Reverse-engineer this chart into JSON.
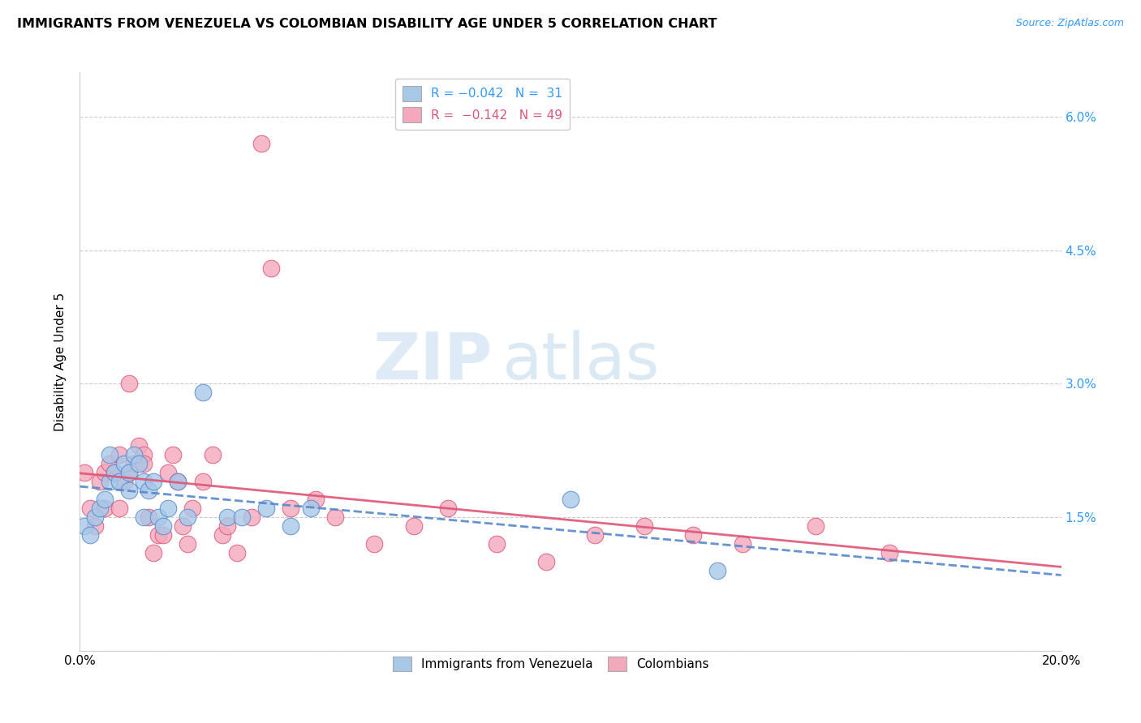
{
  "title": "IMMIGRANTS FROM VENEZUELA VS COLOMBIAN DISABILITY AGE UNDER 5 CORRELATION CHART",
  "source": "Source: ZipAtlas.com",
  "ylabel": "Disability Age Under 5",
  "xlim": [
    0.0,
    0.2
  ],
  "ylim": [
    0.0,
    0.065
  ],
  "yticks": [
    0.0,
    0.015,
    0.03,
    0.045,
    0.06
  ],
  "ytick_labels": [
    "",
    "1.5%",
    "3.0%",
    "4.5%",
    "6.0%"
  ],
  "xticks": [
    0.0,
    0.05,
    0.1,
    0.15,
    0.2
  ],
  "xtick_labels": [
    "0.0%",
    "",
    "",
    "",
    "20.0%"
  ],
  "legend_r1": "R = −0.042   N =  31",
  "legend_r2": "R =  −0.142   N = 49",
  "color_venezuela": "#a8c8e8",
  "color_colombia": "#f4a8bc",
  "line_color_venezuela": "#5588cc",
  "line_color_colombia": "#dd5577",
  "watermark_zip": "ZIP",
  "watermark_atlas": "atlas",
  "venezuela_x": [
    0.001,
    0.002,
    0.003,
    0.004,
    0.005,
    0.006,
    0.006,
    0.007,
    0.008,
    0.009,
    0.01,
    0.01,
    0.011,
    0.012,
    0.013,
    0.013,
    0.014,
    0.015,
    0.016,
    0.017,
    0.018,
    0.02,
    0.022,
    0.025,
    0.03,
    0.033,
    0.038,
    0.043,
    0.047,
    0.1,
    0.13
  ],
  "venezuela_y": [
    0.014,
    0.013,
    0.015,
    0.016,
    0.017,
    0.019,
    0.022,
    0.02,
    0.019,
    0.021,
    0.02,
    0.018,
    0.022,
    0.021,
    0.019,
    0.015,
    0.018,
    0.019,
    0.015,
    0.014,
    0.016,
    0.019,
    0.015,
    0.029,
    0.015,
    0.015,
    0.016,
    0.014,
    0.016,
    0.017,
    0.009
  ],
  "colombia_x": [
    0.001,
    0.002,
    0.003,
    0.004,
    0.005,
    0.005,
    0.006,
    0.007,
    0.008,
    0.008,
    0.009,
    0.01,
    0.01,
    0.011,
    0.012,
    0.013,
    0.013,
    0.014,
    0.015,
    0.016,
    0.017,
    0.018,
    0.019,
    0.02,
    0.021,
    0.022,
    0.023,
    0.025,
    0.027,
    0.029,
    0.03,
    0.032,
    0.035,
    0.037,
    0.039,
    0.043,
    0.048,
    0.052,
    0.06,
    0.068,
    0.075,
    0.085,
    0.095,
    0.105,
    0.115,
    0.125,
    0.135,
    0.15,
    0.165
  ],
  "colombia_y": [
    0.02,
    0.016,
    0.014,
    0.019,
    0.02,
    0.016,
    0.021,
    0.02,
    0.022,
    0.016,
    0.019,
    0.03,
    0.02,
    0.021,
    0.023,
    0.022,
    0.021,
    0.015,
    0.011,
    0.013,
    0.013,
    0.02,
    0.022,
    0.019,
    0.014,
    0.012,
    0.016,
    0.019,
    0.022,
    0.013,
    0.014,
    0.011,
    0.015,
    0.057,
    0.043,
    0.016,
    0.017,
    0.015,
    0.012,
    0.014,
    0.016,
    0.012,
    0.01,
    0.013,
    0.014,
    0.013,
    0.012,
    0.014,
    0.011
  ]
}
